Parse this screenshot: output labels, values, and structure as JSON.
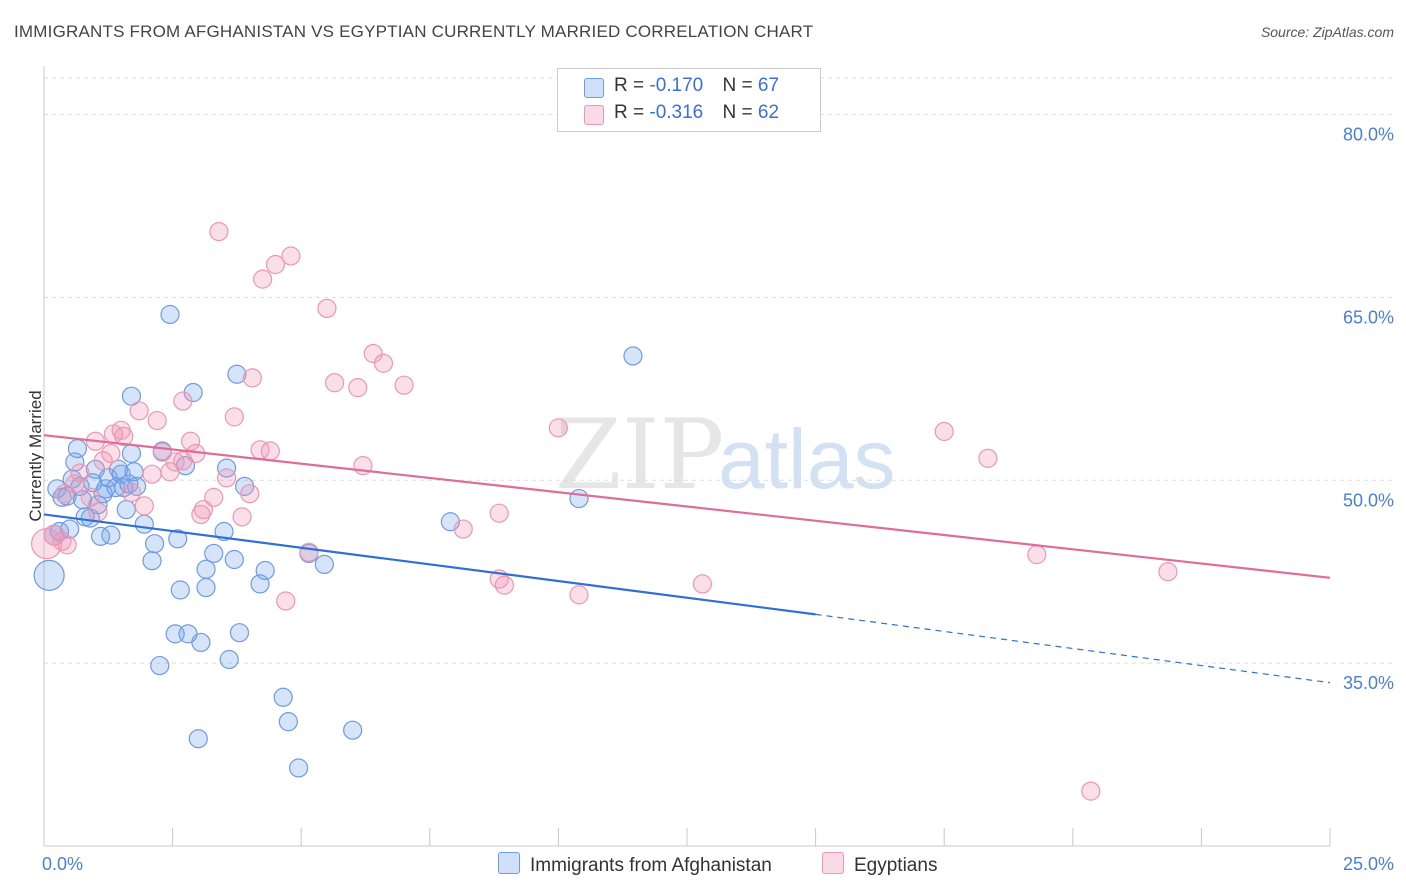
{
  "title": "IMMIGRANTS FROM AFGHANISTAN VS EGYPTIAN CURRENTLY MARRIED CORRELATION CHART",
  "source": "Source: ZipAtlas.com",
  "watermark": {
    "zip": "ZIP",
    "atlas": "atlas"
  },
  "colors": {
    "blue_fill": "rgba(120,165,235,0.30)",
    "blue_stroke": "#6f9be0",
    "blue_line": "#2f6fd6",
    "pink_fill": "rgba(240,150,180,0.30)",
    "pink_stroke": "#eb97b4",
    "pink_line": "#e06c98",
    "grid": "#dcdcdc",
    "axis_text": "#4a7fd6"
  },
  "legend_top": {
    "rows": [
      {
        "r_label": "R = ",
        "r_value": "-0.170",
        "n_label": "N = ",
        "n_value": "67"
      },
      {
        "r_label": "R = ",
        "r_value": "-0.316",
        "n_label": "N = ",
        "n_value": "62"
      }
    ]
  },
  "legend_bottom": [
    "Immigrants from Afghanistan",
    "Egyptians"
  ],
  "chart_data": {
    "type": "scatter",
    "title": "IMMIGRANTS FROM AFGHANISTAN VS EGYPTIAN CURRENTLY MARRIED CORRELATION CHART",
    "xlabel": "",
    "ylabel": "Currently Married",
    "xlim": [
      0,
      25
    ],
    "ylim": [
      20,
      83
    ],
    "x_tick_labels": [
      "0.0%",
      "25.0%"
    ],
    "y_ticks": [
      35,
      50,
      65,
      80
    ],
    "y_tick_labels": [
      "35.0%",
      "50.0%",
      "65.0%",
      "80.0%"
    ],
    "grid": "horizontal dashed",
    "legend_position": "top-center",
    "series": [
      {
        "name": "Immigrants from Afghanistan",
        "R": -0.17,
        "N": 67,
        "trend": {
          "x0": 0,
          "y0": 47.2,
          "x1": 15,
          "y1": 39.0,
          "dashed_to_x": 25,
          "dashed_to_y": 33.4
        },
        "points": [
          {
            "x": 0.1,
            "y": 42.2,
            "s": 15
          },
          {
            "x": 0.2,
            "y": 45.5,
            "s": 10
          },
          {
            "x": 0.25,
            "y": 49.3,
            "s": 9
          },
          {
            "x": 0.3,
            "y": 45.8,
            "s": 9
          },
          {
            "x": 0.35,
            "y": 48.6,
            "s": 9
          },
          {
            "x": 0.45,
            "y": 48.7,
            "s": 9
          },
          {
            "x": 0.5,
            "y": 46.0,
            "s": 9
          },
          {
            "x": 0.55,
            "y": 50.1,
            "s": 9
          },
          {
            "x": 0.6,
            "y": 51.5,
            "s": 9
          },
          {
            "x": 0.65,
            "y": 52.6,
            "s": 9
          },
          {
            "x": 0.7,
            "y": 49.5,
            "s": 9
          },
          {
            "x": 0.75,
            "y": 48.4,
            "s": 9
          },
          {
            "x": 0.8,
            "y": 47.0,
            "s": 9
          },
          {
            "x": 0.9,
            "y": 46.9,
            "s": 9
          },
          {
            "x": 0.95,
            "y": 49.8,
            "s": 9
          },
          {
            "x": 1.0,
            "y": 50.9,
            "s": 9
          },
          {
            "x": 1.05,
            "y": 48.0,
            "s": 9
          },
          {
            "x": 1.1,
            "y": 45.4,
            "s": 9
          },
          {
            "x": 1.15,
            "y": 48.9,
            "s": 9
          },
          {
            "x": 1.2,
            "y": 49.3,
            "s": 9
          },
          {
            "x": 1.25,
            "y": 50.2,
            "s": 9
          },
          {
            "x": 1.3,
            "y": 45.5,
            "s": 9
          },
          {
            "x": 1.4,
            "y": 49.4,
            "s": 9
          },
          {
            "x": 1.45,
            "y": 50.9,
            "s": 9
          },
          {
            "x": 1.5,
            "y": 50.5,
            "s": 9
          },
          {
            "x": 1.55,
            "y": 49.4,
            "s": 9
          },
          {
            "x": 1.6,
            "y": 47.6,
            "s": 9
          },
          {
            "x": 1.65,
            "y": 49.7,
            "s": 9
          },
          {
            "x": 1.7,
            "y": 52.2,
            "s": 9
          },
          {
            "x": 1.7,
            "y": 56.9,
            "s": 9
          },
          {
            "x": 1.75,
            "y": 50.7,
            "s": 9
          },
          {
            "x": 1.8,
            "y": 49.5,
            "s": 9
          },
          {
            "x": 1.95,
            "y": 46.4,
            "s": 9
          },
          {
            "x": 2.1,
            "y": 43.4,
            "s": 9
          },
          {
            "x": 2.15,
            "y": 44.8,
            "s": 9
          },
          {
            "x": 2.25,
            "y": 34.8,
            "s": 9
          },
          {
            "x": 2.3,
            "y": 52.4,
            "s": 9
          },
          {
            "x": 2.45,
            "y": 63.6,
            "s": 9
          },
          {
            "x": 2.55,
            "y": 37.4,
            "s": 9
          },
          {
            "x": 2.6,
            "y": 45.2,
            "s": 9
          },
          {
            "x": 2.65,
            "y": 41.0,
            "s": 9
          },
          {
            "x": 2.75,
            "y": 51.2,
            "s": 9
          },
          {
            "x": 2.8,
            "y": 37.4,
            "s": 9
          },
          {
            "x": 2.9,
            "y": 57.2,
            "s": 9
          },
          {
            "x": 3.0,
            "y": 28.8,
            "s": 9
          },
          {
            "x": 3.05,
            "y": 36.7,
            "s": 9
          },
          {
            "x": 3.15,
            "y": 42.7,
            "s": 9
          },
          {
            "x": 3.15,
            "y": 41.2,
            "s": 9
          },
          {
            "x": 3.3,
            "y": 44.0,
            "s": 9
          },
          {
            "x": 3.5,
            "y": 45.8,
            "s": 9
          },
          {
            "x": 3.55,
            "y": 51.0,
            "s": 9
          },
          {
            "x": 3.6,
            "y": 35.3,
            "s": 9
          },
          {
            "x": 3.7,
            "y": 43.5,
            "s": 9
          },
          {
            "x": 3.75,
            "y": 58.7,
            "s": 9
          },
          {
            "x": 3.8,
            "y": 37.5,
            "s": 9
          },
          {
            "x": 3.9,
            "y": 49.5,
            "s": 9
          },
          {
            "x": 4.2,
            "y": 41.5,
            "s": 9
          },
          {
            "x": 4.3,
            "y": 42.6,
            "s": 9
          },
          {
            "x": 4.65,
            "y": 32.2,
            "s": 9
          },
          {
            "x": 4.75,
            "y": 30.2,
            "s": 9
          },
          {
            "x": 4.95,
            "y": 26.4,
            "s": 9
          },
          {
            "x": 5.15,
            "y": 44.0,
            "s": 9
          },
          {
            "x": 5.45,
            "y": 43.1,
            "s": 9
          },
          {
            "x": 6.0,
            "y": 29.5,
            "s": 9
          },
          {
            "x": 7.9,
            "y": 46.6,
            "s": 9
          },
          {
            "x": 10.4,
            "y": 48.5,
            "s": 9
          },
          {
            "x": 11.45,
            "y": 60.2,
            "s": 9
          }
        ]
      },
      {
        "name": "Egyptians",
        "R": -0.316,
        "N": 62,
        "trend": {
          "x0": 0,
          "y0": 53.7,
          "x1": 25,
          "y1": 42.0
        },
        "points": [
          {
            "x": 0.05,
            "y": 44.8,
            "s": 15
          },
          {
            "x": 0.2,
            "y": 45.5,
            "s": 10
          },
          {
            "x": 0.35,
            "y": 45.0,
            "s": 9
          },
          {
            "x": 0.4,
            "y": 48.9,
            "s": 9
          },
          {
            "x": 0.45,
            "y": 44.7,
            "s": 9
          },
          {
            "x": 0.6,
            "y": 49.7,
            "s": 9
          },
          {
            "x": 0.7,
            "y": 50.6,
            "s": 9
          },
          {
            "x": 0.9,
            "y": 48.6,
            "s": 9
          },
          {
            "x": 1.0,
            "y": 53.2,
            "s": 9
          },
          {
            "x": 1.05,
            "y": 47.4,
            "s": 9
          },
          {
            "x": 1.15,
            "y": 51.6,
            "s": 9
          },
          {
            "x": 1.3,
            "y": 52.2,
            "s": 9
          },
          {
            "x": 1.35,
            "y": 53.8,
            "s": 9
          },
          {
            "x": 1.5,
            "y": 54.1,
            "s": 9
          },
          {
            "x": 1.55,
            "y": 53.6,
            "s": 9
          },
          {
            "x": 1.7,
            "y": 49.0,
            "s": 9
          },
          {
            "x": 1.85,
            "y": 55.7,
            "s": 9
          },
          {
            "x": 1.95,
            "y": 47.9,
            "s": 9
          },
          {
            "x": 2.1,
            "y": 50.5,
            "s": 9
          },
          {
            "x": 2.2,
            "y": 54.9,
            "s": 9
          },
          {
            "x": 2.3,
            "y": 52.3,
            "s": 9
          },
          {
            "x": 2.45,
            "y": 50.7,
            "s": 9
          },
          {
            "x": 2.55,
            "y": 51.5,
            "s": 9
          },
          {
            "x": 2.7,
            "y": 51.6,
            "s": 9
          },
          {
            "x": 2.7,
            "y": 56.5,
            "s": 9
          },
          {
            "x": 2.85,
            "y": 53.2,
            "s": 9
          },
          {
            "x": 2.95,
            "y": 52.2,
            "s": 9
          },
          {
            "x": 3.05,
            "y": 47.2,
            "s": 9
          },
          {
            "x": 3.1,
            "y": 47.6,
            "s": 9
          },
          {
            "x": 3.3,
            "y": 48.6,
            "s": 9
          },
          {
            "x": 3.4,
            "y": 70.4,
            "s": 9
          },
          {
            "x": 3.55,
            "y": 50.2,
            "s": 9
          },
          {
            "x": 3.7,
            "y": 55.2,
            "s": 9
          },
          {
            "x": 3.85,
            "y": 47.0,
            "s": 9
          },
          {
            "x": 4.0,
            "y": 48.9,
            "s": 9
          },
          {
            "x": 4.05,
            "y": 58.4,
            "s": 9
          },
          {
            "x": 4.2,
            "y": 52.5,
            "s": 9
          },
          {
            "x": 4.25,
            "y": 66.5,
            "s": 9
          },
          {
            "x": 4.4,
            "y": 52.4,
            "s": 9
          },
          {
            "x": 4.5,
            "y": 67.7,
            "s": 9
          },
          {
            "x": 4.7,
            "y": 40.1,
            "s": 9
          },
          {
            "x": 4.8,
            "y": 68.4,
            "s": 9
          },
          {
            "x": 5.15,
            "y": 44.1,
            "s": 9
          },
          {
            "x": 5.5,
            "y": 64.1,
            "s": 9
          },
          {
            "x": 5.65,
            "y": 58.0,
            "s": 9
          },
          {
            "x": 6.1,
            "y": 57.6,
            "s": 9
          },
          {
            "x": 6.2,
            "y": 51.2,
            "s": 9
          },
          {
            "x": 6.4,
            "y": 60.4,
            "s": 9
          },
          {
            "x": 6.6,
            "y": 59.6,
            "s": 9
          },
          {
            "x": 7.0,
            "y": 57.8,
            "s": 9
          },
          {
            "x": 8.15,
            "y": 46.0,
            "s": 9
          },
          {
            "x": 8.85,
            "y": 47.3,
            "s": 9
          },
          {
            "x": 8.85,
            "y": 41.9,
            "s": 9
          },
          {
            "x": 8.95,
            "y": 41.4,
            "s": 9
          },
          {
            "x": 10.0,
            "y": 54.3,
            "s": 9
          },
          {
            "x": 10.4,
            "y": 40.6,
            "s": 9
          },
          {
            "x": 12.8,
            "y": 41.5,
            "s": 9
          },
          {
            "x": 17.5,
            "y": 54.0,
            "s": 9
          },
          {
            "x": 18.35,
            "y": 51.8,
            "s": 9
          },
          {
            "x": 19.3,
            "y": 43.9,
            "s": 9
          },
          {
            "x": 20.35,
            "y": 24.5,
            "s": 9
          },
          {
            "x": 21.85,
            "y": 42.5,
            "s": 9
          }
        ]
      }
    ]
  }
}
